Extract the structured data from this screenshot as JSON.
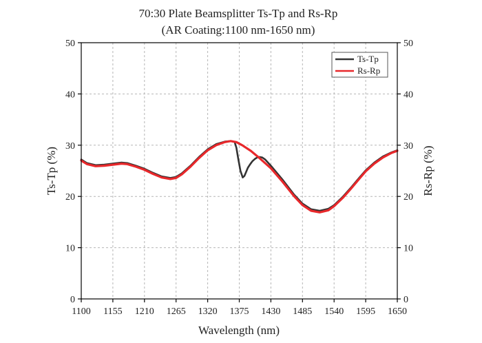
{
  "chart_data": {
    "type": "line",
    "title": "70:30 Plate Beamsplitter Ts-Tp and Rs-Rp",
    "subtitle": "(AR Coating:1100 nm-1650 nm)",
    "xlabel": "Wavelength (nm)",
    "ylabel": "Ts-Tp (%)",
    "ylabel_right": "Rs-Rp (%)",
    "xlim": [
      1100,
      1650
    ],
    "ylim": [
      0,
      50
    ],
    "x_ticks": [
      1100,
      1155,
      1210,
      1265,
      1320,
      1375,
      1430,
      1485,
      1540,
      1595,
      1650
    ],
    "y_ticks": [
      0,
      10,
      20,
      30,
      40,
      50
    ],
    "grid": true,
    "legend_position": "top-right",
    "series": [
      {
        "name": "Ts-Tp",
        "color": "#333333",
        "x": [
          1100,
          1110,
          1125,
          1140,
          1155,
          1170,
          1180,
          1195,
          1210,
          1225,
          1240,
          1255,
          1265,
          1275,
          1290,
          1305,
          1320,
          1335,
          1350,
          1360,
          1367,
          1370,
          1373,
          1377,
          1381,
          1384,
          1387,
          1390,
          1394,
          1398,
          1402,
          1406,
          1410,
          1415,
          1420,
          1430,
          1450,
          1470,
          1485,
          1500,
          1515,
          1530,
          1540,
          1555,
          1570,
          1585,
          1595,
          1610,
          1625,
          1640,
          1650
        ],
        "y": [
          27.2,
          26.5,
          26.1,
          26.2,
          26.4,
          26.6,
          26.5,
          26.0,
          25.4,
          24.6,
          23.9,
          23.6,
          23.8,
          24.5,
          26.0,
          27.7,
          29.2,
          30.2,
          30.7,
          30.8,
          30.6,
          29.5,
          27.5,
          25.0,
          23.7,
          24.0,
          24.8,
          25.6,
          26.3,
          26.9,
          27.3,
          27.6,
          27.7,
          27.6,
          27.2,
          26.0,
          23.3,
          20.4,
          18.6,
          17.5,
          17.2,
          17.6,
          18.3,
          19.9,
          21.8,
          23.8,
          25.1,
          26.6,
          27.8,
          28.6,
          29.0
        ]
      },
      {
        "name": "Rs-Rp",
        "color": "#e8282b",
        "x": [
          1100,
          1110,
          1125,
          1140,
          1155,
          1170,
          1180,
          1195,
          1210,
          1225,
          1240,
          1255,
          1265,
          1275,
          1290,
          1305,
          1320,
          1335,
          1350,
          1360,
          1370,
          1380,
          1395,
          1410,
          1430,
          1450,
          1470,
          1485,
          1500,
          1515,
          1530,
          1540,
          1555,
          1570,
          1585,
          1595,
          1610,
          1625,
          1640,
          1650
        ],
        "y": [
          27.0,
          26.3,
          25.9,
          26.0,
          26.2,
          26.4,
          26.3,
          25.8,
          25.2,
          24.4,
          23.7,
          23.4,
          23.6,
          24.3,
          25.8,
          27.5,
          29.0,
          30.0,
          30.6,
          30.8,
          30.6,
          30.0,
          28.9,
          27.5,
          25.5,
          22.9,
          20.1,
          18.3,
          17.2,
          16.9,
          17.3,
          18.1,
          19.7,
          21.6,
          23.6,
          24.9,
          26.4,
          27.6,
          28.5,
          28.9
        ]
      }
    ]
  }
}
